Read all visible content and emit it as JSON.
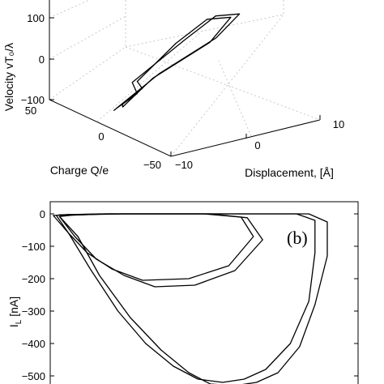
{
  "chart_data": [
    {
      "type": "line",
      "projection": "3d",
      "zlabel": "Velocity vT₀/λ",
      "xlabel": "Charge Q/e",
      "ylabel": "Displacement, [Å]",
      "z_ticks": [
        "100",
        "0",
        "−100"
      ],
      "x_ticks": [
        "50",
        "0",
        "−50"
      ],
      "y_ticks": [
        "−10",
        "0",
        "10"
      ],
      "series": [
        {
          "x": [
            -10,
            -5,
            0,
            5,
            10,
            8,
            2,
            -4,
            -8,
            -10
          ],
          "y": [
            -8,
            -2,
            3,
            7,
            5,
            -3,
            -8,
            -9,
            -7,
            -8
          ],
          "z": [
            20,
            80,
            110,
            90,
            30,
            -20,
            -60,
            -40,
            -5,
            20
          ]
        },
        {
          "x": [
            -12,
            -6,
            -1,
            4,
            11,
            9,
            3,
            -5,
            -10,
            -12
          ],
          "y": [
            -9,
            -1,
            4,
            8,
            6,
            -2,
            -9,
            -10,
            -8,
            -9
          ],
          "z": [
            25,
            85,
            115,
            95,
            35,
            -15,
            -65,
            -45,
            -10,
            25
          ]
        }
      ]
    },
    {
      "type": "line",
      "panel_label": "(b)",
      "ylabel": "I_L [nA]",
      "ylabel_main": "I",
      "ylabel_sub": "L",
      "ylabel_unit": " [nA]",
      "y_ticks": [
        "0",
        "−100",
        "−200",
        "−300",
        "−400",
        "−500"
      ],
      "ylim": [
        -530,
        10
      ],
      "xlim": [
        0,
        1
      ],
      "series": [
        {
          "x": [
            0.02,
            0.06,
            0.12,
            0.2,
            0.3,
            0.45,
            0.58,
            0.66,
            0.62,
            0.5,
            0.38,
            0.26,
            0.16,
            0.09,
            0.03,
            0.02
          ],
          "y": [
            -5,
            -60,
            -120,
            -170,
            -205,
            -200,
            -160,
            -70,
            -10,
            0,
            0,
            0,
            0,
            -2,
            -3,
            -5
          ]
        },
        {
          "x": [
            0.03,
            0.08,
            0.15,
            0.24,
            0.34,
            0.47,
            0.6,
            0.69,
            0.64,
            0.52,
            0.4,
            0.28,
            0.18,
            0.1,
            0.04,
            0.03
          ],
          "y": [
            -8,
            -70,
            -140,
            -190,
            -225,
            -220,
            -175,
            -80,
            -12,
            0,
            0,
            0,
            0,
            -3,
            -5,
            -8
          ]
        },
        {
          "x": [
            0.01,
            0.06,
            0.13,
            0.22,
            0.31,
            0.4,
            0.48,
            0.56,
            0.63,
            0.7,
            0.78,
            0.84,
            0.86,
            0.86,
            0.8,
            0.6,
            0.4,
            0.2,
            0.06,
            0.01
          ],
          "y": [
            -5,
            -60,
            -170,
            -300,
            -400,
            -470,
            -510,
            -520,
            -510,
            -480,
            -400,
            -270,
            -120,
            -20,
            0,
            0,
            0,
            0,
            -2,
            -5
          ]
        },
        {
          "x": [
            0.03,
            0.09,
            0.16,
            0.26,
            0.36,
            0.45,
            0.52,
            0.6,
            0.67,
            0.74,
            0.81,
            0.86,
            0.9,
            0.9,
            0.84,
            0.64,
            0.44,
            0.24,
            0.08,
            0.03
          ],
          "y": [
            -8,
            -70,
            -190,
            -320,
            -420,
            -490,
            -525,
            -530,
            -520,
            -490,
            -410,
            -280,
            -130,
            -25,
            0,
            0,
            0,
            0,
            -3,
            -8
          ]
        }
      ]
    }
  ]
}
